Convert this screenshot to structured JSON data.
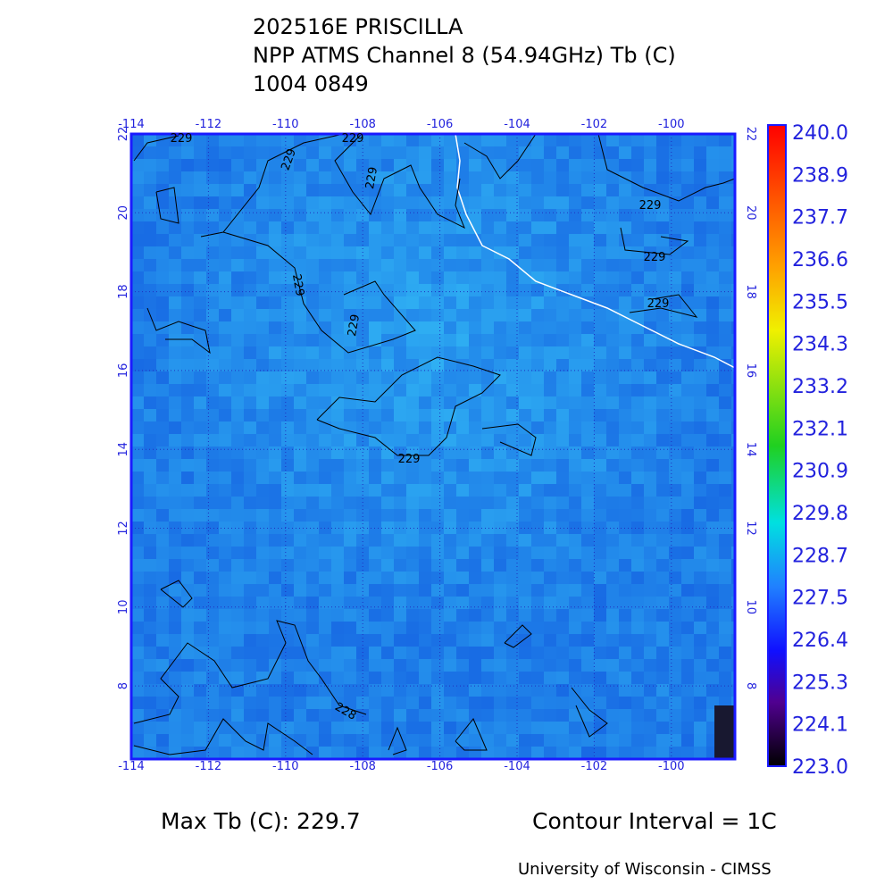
{
  "header": {
    "lines": [
      "202516E PRISCILLA",
      "NPP ATMS Channel 8 (54.94GHz) Tb (C)",
      "1004 0849"
    ]
  },
  "map": {
    "lon_ticks": [
      -114,
      -112,
      -110,
      -108,
      -106,
      -104,
      -102,
      -100
    ],
    "lat_ticks": [
      22,
      20,
      18,
      16,
      14,
      12,
      10,
      8
    ],
    "contour_labels": [
      "229",
      "229",
      "229",
      "229",
      "229",
      "229",
      "229",
      "229",
      "229",
      "229",
      "228"
    ]
  },
  "colorbar": {
    "labels": [
      "240.0",
      "238.9",
      "237.7",
      "236.6",
      "235.5",
      "234.3",
      "233.2",
      "232.1",
      "230.9",
      "229.8",
      "228.7",
      "227.5",
      "226.4",
      "225.3",
      "224.1",
      "223.0"
    ]
  },
  "footer": {
    "max_tb": "Max Tb (C): 229.7",
    "contour_interval": "Contour Interval = 1C",
    "credit": "University of Wisconsin - CIMSS"
  }
}
